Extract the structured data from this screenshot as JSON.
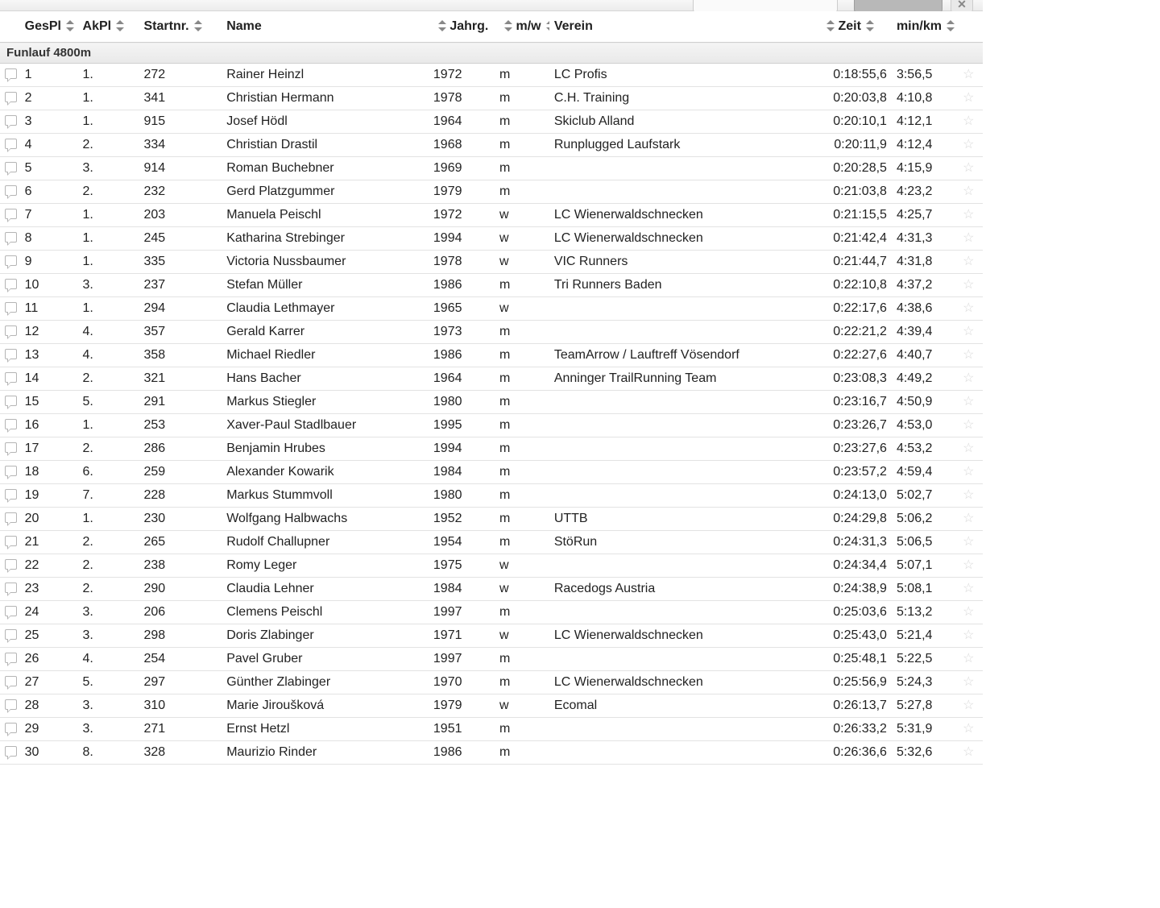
{
  "columns": {
    "gespl": "GesPl",
    "akpl": "AkPl",
    "start": "Startnr.",
    "name": "Name",
    "jahrg": "Jahrg.",
    "mw": "m/w",
    "verein": "Verein",
    "zeit": "Zeit",
    "minkm": "min/km"
  },
  "group_label": "Funlauf 4800m",
  "rows": [
    {
      "ges": "1",
      "ak": "1.",
      "nr": "272",
      "name": "Rainer Heinzl",
      "jg": "1972",
      "mw": "m",
      "verein": "LC Profis",
      "zeit": "0:18:55,6",
      "pace": "3:56,5"
    },
    {
      "ges": "2",
      "ak": "1.",
      "nr": "341",
      "name": "Christian Hermann",
      "jg": "1978",
      "mw": "m",
      "verein": "C.H. Training",
      "zeit": "0:20:03,8",
      "pace": "4:10,8"
    },
    {
      "ges": "3",
      "ak": "1.",
      "nr": "915",
      "name": "Josef Hödl",
      "jg": "1964",
      "mw": "m",
      "verein": "Skiclub Alland",
      "zeit": "0:20:10,1",
      "pace": "4:12,1"
    },
    {
      "ges": "4",
      "ak": "2.",
      "nr": "334",
      "name": "Christian Drastil",
      "jg": "1968",
      "mw": "m",
      "verein": "Runplugged Laufstark",
      "zeit": "0:20:11,9",
      "pace": "4:12,4"
    },
    {
      "ges": "5",
      "ak": "3.",
      "nr": "914",
      "name": "Roman Buchebner",
      "jg": "1969",
      "mw": "m",
      "verein": "",
      "zeit": "0:20:28,5",
      "pace": "4:15,9"
    },
    {
      "ges": "6",
      "ak": "2.",
      "nr": "232",
      "name": "Gerd Platzgummer",
      "jg": "1979",
      "mw": "m",
      "verein": "",
      "zeit": "0:21:03,8",
      "pace": "4:23,2"
    },
    {
      "ges": "7",
      "ak": "1.",
      "nr": "203",
      "name": "Manuela Peischl",
      "jg": "1972",
      "mw": "w",
      "verein": "LC Wienerwaldschnecken",
      "zeit": "0:21:15,5",
      "pace": "4:25,7"
    },
    {
      "ges": "8",
      "ak": "1.",
      "nr": "245",
      "name": "Katharina Strebinger",
      "jg": "1994",
      "mw": "w",
      "verein": "LC Wienerwaldschnecken",
      "zeit": "0:21:42,4",
      "pace": "4:31,3"
    },
    {
      "ges": "9",
      "ak": "1.",
      "nr": "335",
      "name": "Victoria Nussbaumer",
      "jg": "1978",
      "mw": "w",
      "verein": "VIC Runners",
      "zeit": "0:21:44,7",
      "pace": "4:31,8"
    },
    {
      "ges": "10",
      "ak": "3.",
      "nr": "237",
      "name": "Stefan Müller",
      "jg": "1986",
      "mw": "m",
      "verein": "Tri Runners Baden",
      "zeit": "0:22:10,8",
      "pace": "4:37,2"
    },
    {
      "ges": "11",
      "ak": "1.",
      "nr": "294",
      "name": "Claudia Lethmayer",
      "jg": "1965",
      "mw": "w",
      "verein": "",
      "zeit": "0:22:17,6",
      "pace": "4:38,6"
    },
    {
      "ges": "12",
      "ak": "4.",
      "nr": "357",
      "name": "Gerald Karrer",
      "jg": "1973",
      "mw": "m",
      "verein": "",
      "zeit": "0:22:21,2",
      "pace": "4:39,4"
    },
    {
      "ges": "13",
      "ak": "4.",
      "nr": "358",
      "name": "Michael Riedler",
      "jg": "1986",
      "mw": "m",
      "verein": "TeamArrow / Lauftreff Vösendorf",
      "zeit": "0:22:27,6",
      "pace": "4:40,7"
    },
    {
      "ges": "14",
      "ak": "2.",
      "nr": "321",
      "name": "Hans Bacher",
      "jg": "1964",
      "mw": "m",
      "verein": "Anninger TrailRunning Team",
      "zeit": "0:23:08,3",
      "pace": "4:49,2"
    },
    {
      "ges": "15",
      "ak": "5.",
      "nr": "291",
      "name": "Markus Stiegler",
      "jg": "1980",
      "mw": "m",
      "verein": "",
      "zeit": "0:23:16,7",
      "pace": "4:50,9"
    },
    {
      "ges": "16",
      "ak": "1.",
      "nr": "253",
      "name": "Xaver-Paul Stadlbauer",
      "jg": "1995",
      "mw": "m",
      "verein": "",
      "zeit": "0:23:26,7",
      "pace": "4:53,0"
    },
    {
      "ges": "17",
      "ak": "2.",
      "nr": "286",
      "name": "Benjamin Hrubes",
      "jg": "1994",
      "mw": "m",
      "verein": "",
      "zeit": "0:23:27,6",
      "pace": "4:53,2"
    },
    {
      "ges": "18",
      "ak": "6.",
      "nr": "259",
      "name": "Alexander Kowarik",
      "jg": "1984",
      "mw": "m",
      "verein": "",
      "zeit": "0:23:57,2",
      "pace": "4:59,4"
    },
    {
      "ges": "19",
      "ak": "7.",
      "nr": "228",
      "name": "Markus Stummvoll",
      "jg": "1980",
      "mw": "m",
      "verein": "",
      "zeit": "0:24:13,0",
      "pace": "5:02,7"
    },
    {
      "ges": "20",
      "ak": "1.",
      "nr": "230",
      "name": "Wolfgang Halbwachs",
      "jg": "1952",
      "mw": "m",
      "verein": "UTTB",
      "zeit": "0:24:29,8",
      "pace": "5:06,2"
    },
    {
      "ges": "21",
      "ak": "2.",
      "nr": "265",
      "name": "Rudolf Challupner",
      "jg": "1954",
      "mw": "m",
      "verein": "StöRun",
      "zeit": "0:24:31,3",
      "pace": "5:06,5"
    },
    {
      "ges": "22",
      "ak": "2.",
      "nr": "238",
      "name": "Romy Leger",
      "jg": "1975",
      "mw": "w",
      "verein": "",
      "zeit": "0:24:34,4",
      "pace": "5:07,1"
    },
    {
      "ges": "23",
      "ak": "2.",
      "nr": "290",
      "name": "Claudia Lehner",
      "jg": "1984",
      "mw": "w",
      "verein": "Racedogs Austria",
      "zeit": "0:24:38,9",
      "pace": "5:08,1"
    },
    {
      "ges": "24",
      "ak": "3.",
      "nr": "206",
      "name": "Clemens Peischl",
      "jg": "1997",
      "mw": "m",
      "verein": "",
      "zeit": "0:25:03,6",
      "pace": "5:13,2"
    },
    {
      "ges": "25",
      "ak": "3.",
      "nr": "298",
      "name": "Doris Zlabinger",
      "jg": "1971",
      "mw": "w",
      "verein": "LC Wienerwaldschnecken",
      "zeit": "0:25:43,0",
      "pace": "5:21,4"
    },
    {
      "ges": "26",
      "ak": "4.",
      "nr": "254",
      "name": "Pavel Gruber",
      "jg": "1997",
      "mw": "m",
      "verein": "",
      "zeit": "0:25:48,1",
      "pace": "5:22,5"
    },
    {
      "ges": "27",
      "ak": "5.",
      "nr": "297",
      "name": "Günther Zlabinger",
      "jg": "1970",
      "mw": "m",
      "verein": "LC Wienerwaldschnecken",
      "zeit": "0:25:56,9",
      "pace": "5:24,3"
    },
    {
      "ges": "28",
      "ak": "3.",
      "nr": "310",
      "name": "Marie Jiroušková",
      "jg": "1979",
      "mw": "w",
      "verein": "Ecomal",
      "zeit": "0:26:13,7",
      "pace": "5:27,8"
    },
    {
      "ges": "29",
      "ak": "3.",
      "nr": "271",
      "name": "Ernst Hetzl",
      "jg": "1951",
      "mw": "m",
      "verein": "",
      "zeit": "0:26:33,2",
      "pace": "5:31,9"
    },
    {
      "ges": "30",
      "ak": "8.",
      "nr": "328",
      "name": "Maurizio Rinder",
      "jg": "1986",
      "mw": "m",
      "verein": "",
      "zeit": "0:26:36,6",
      "pace": "5:32,6"
    }
  ]
}
